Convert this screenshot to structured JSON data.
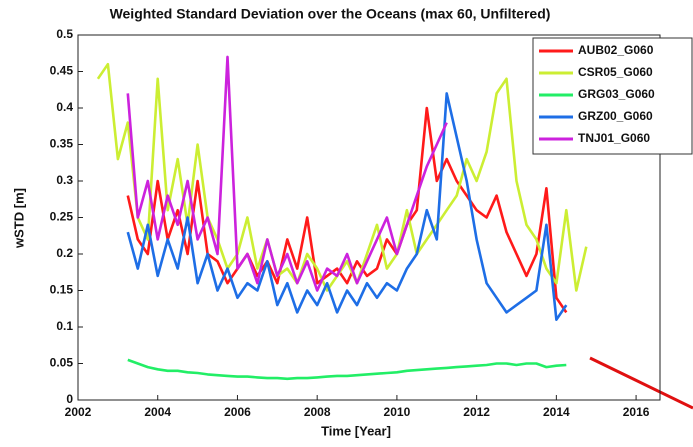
{
  "chart_data": {
    "type": "line",
    "title": "Weighted Standard Deviation over the Oceans (max 60, Unfiltered)",
    "xlabel": "Time [Year]",
    "ylabel": "wSTD [m]",
    "x": [
      2002.5,
      2002.75,
      2003,
      2003.25,
      2003.5,
      2003.75,
      2004,
      2004.25,
      2004.5,
      2004.75,
      2005,
      2005.25,
      2005.5,
      2005.75,
      2006,
      2006.25,
      2006.5,
      2006.75,
      2007,
      2007.25,
      2007.5,
      2007.75,
      2008,
      2008.25,
      2008.5,
      2008.75,
      2009,
      2009.25,
      2009.5,
      2009.75,
      2010,
      2010.25,
      2010.5,
      2010.75,
      2011,
      2011.25,
      2011.5,
      2011.75,
      2012,
      2012.25,
      2012.5,
      2012.75,
      2013,
      2013.25,
      2013.5,
      2013.75,
      2014,
      2014.25,
      2014.5,
      2014.75
    ],
    "series": [
      {
        "name": "AUB02_G060",
        "color": "#ff1a1a",
        "values": [
          null,
          null,
          null,
          0.28,
          0.22,
          0.2,
          0.3,
          0.22,
          0.26,
          0.2,
          0.3,
          0.2,
          0.19,
          0.16,
          0.18,
          0.2,
          0.17,
          0.19,
          0.16,
          0.22,
          0.18,
          0.25,
          0.16,
          0.17,
          0.18,
          0.16,
          0.19,
          0.17,
          0.18,
          0.22,
          0.2,
          0.24,
          0.26,
          0.4,
          0.3,
          0.33,
          0.3,
          0.28,
          0.26,
          0.25,
          0.28,
          0.23,
          0.2,
          0.17,
          0.2,
          0.29,
          0.14,
          0.12,
          null,
          null
        ]
      },
      {
        "name": "CSR05_G060",
        "color": "#ccee33",
        "values": [
          0.44,
          0.46,
          0.33,
          0.38,
          0.25,
          0.22,
          0.44,
          0.26,
          0.33,
          0.24,
          0.35,
          0.25,
          0.22,
          0.18,
          0.2,
          0.25,
          0.18,
          0.22,
          0.17,
          0.18,
          0.16,
          0.2,
          0.18,
          0.15,
          0.17,
          0.19,
          0.16,
          0.2,
          0.24,
          0.18,
          0.2,
          0.26,
          0.2,
          0.22,
          0.24,
          0.26,
          0.28,
          0.33,
          0.3,
          0.34,
          0.42,
          0.44,
          0.3,
          0.24,
          0.22,
          0.18,
          0.16,
          0.26,
          0.15,
          0.21
        ]
      },
      {
        "name": "GRG03_G060",
        "color": "#22ee66",
        "values": [
          null,
          null,
          null,
          0.055,
          0.05,
          0.045,
          0.042,
          0.04,
          0.04,
          0.038,
          0.037,
          0.035,
          0.034,
          0.033,
          0.032,
          0.032,
          0.031,
          0.03,
          0.03,
          0.029,
          0.03,
          0.03,
          0.031,
          0.032,
          0.033,
          0.033,
          0.034,
          0.035,
          0.036,
          0.037,
          0.038,
          0.04,
          0.041,
          0.042,
          0.043,
          0.044,
          0.045,
          0.046,
          0.047,
          0.048,
          0.05,
          0.05,
          0.048,
          0.05,
          0.05,
          0.045,
          0.047,
          0.048,
          null,
          null
        ]
      },
      {
        "name": "GRZ00_G060",
        "color": "#1e6ee6",
        "values": [
          null,
          null,
          null,
          0.23,
          0.18,
          0.24,
          0.17,
          0.22,
          0.18,
          0.25,
          0.16,
          0.2,
          0.15,
          0.18,
          0.14,
          0.16,
          0.15,
          0.19,
          0.13,
          0.16,
          0.12,
          0.15,
          0.13,
          0.16,
          0.12,
          0.15,
          0.13,
          0.16,
          0.14,
          0.16,
          0.15,
          0.18,
          0.2,
          0.26,
          0.22,
          0.42,
          0.36,
          0.3,
          0.22,
          0.16,
          0.14,
          0.12,
          0.13,
          0.14,
          0.15,
          0.24,
          0.11,
          0.13,
          null,
          null
        ]
      },
      {
        "name": "TNJ01_G060",
        "color": "#cc22dd",
        "values": [
          null,
          null,
          null,
          0.42,
          0.25,
          0.3,
          0.22,
          0.28,
          0.24,
          0.3,
          0.22,
          0.25,
          0.2,
          0.47,
          0.18,
          0.2,
          0.16,
          0.22,
          0.17,
          0.2,
          0.16,
          0.19,
          0.15,
          0.18,
          0.17,
          0.2,
          0.16,
          0.19,
          0.22,
          0.25,
          0.2,
          0.24,
          0.28,
          0.32,
          0.35,
          0.38,
          null,
          null,
          null,
          null,
          null,
          null,
          null,
          null,
          null,
          null,
          null,
          null,
          null,
          null
        ]
      }
    ],
    "xlim": [
      2002,
      2016.6
    ],
    "ylim": [
      0,
      0.5
    ],
    "xticks": [
      2002,
      2004,
      2006,
      2008,
      2010,
      2012,
      2014,
      2016
    ],
    "yticks": [
      0,
      0.05,
      0.1,
      0.15,
      0.2,
      0.25,
      0.3,
      0.35,
      0.4,
      0.45,
      0.5
    ],
    "grid": false,
    "legend": "upper right"
  }
}
